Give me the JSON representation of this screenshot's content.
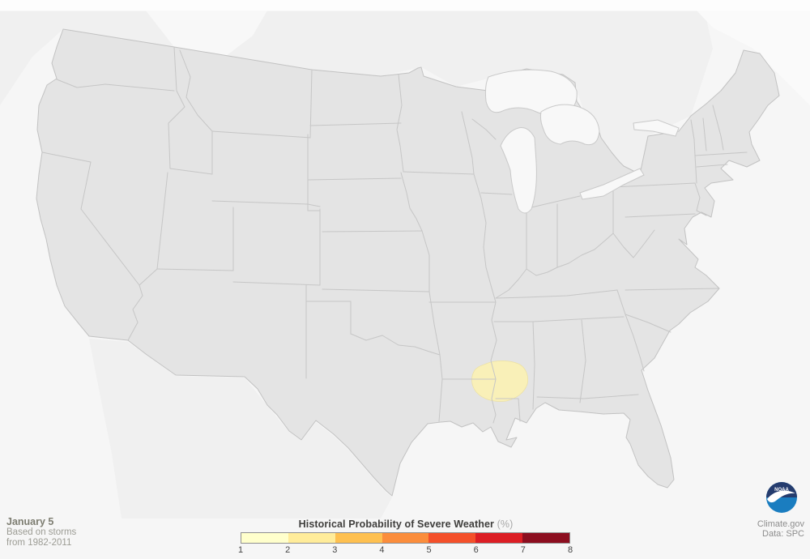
{
  "footer": {
    "date_label": "January 5",
    "subtitle_line1": "Based on storms",
    "subtitle_line2": "from 1982-2011",
    "credit_line1": "Climate.gov",
    "credit_line2": "Data: SPC",
    "noaa_label": "NOAA"
  },
  "legend": {
    "title": "Historical Probability of Severe Weather",
    "unit": "(%)",
    "ticks": [
      "1",
      "2",
      "3",
      "4",
      "5",
      "6",
      "7",
      "8"
    ],
    "colors": [
      "#FFFFCC",
      "#FFEC9A",
      "#FEC050",
      "#FB8D3C",
      "#F4502A",
      "#DC1E24",
      "#8C0E1F"
    ]
  },
  "map": {
    "type": "choropleth-probability-map",
    "region_of_interest": {
      "label": "1% historical probability contour",
      "value_percent": 1,
      "location": "central Mississippi and northeast Louisiana",
      "fill": "#F9F0B8"
    },
    "scale_range_percent": [
      1,
      8
    ],
    "land_fill": "#E4E4E4",
    "state_border_color": "#C6C6C6",
    "water_fill": "#F8F8F8"
  }
}
